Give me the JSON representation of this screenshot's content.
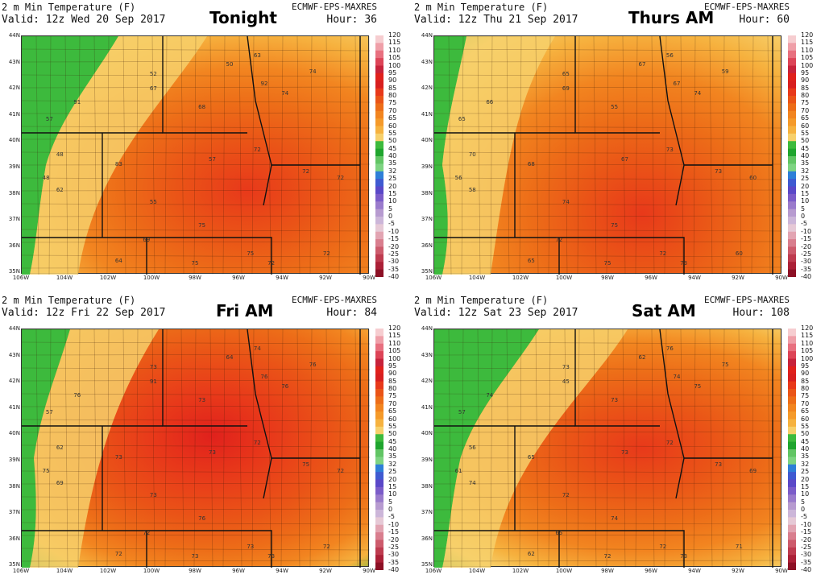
{
  "panels": [
    {
      "title": "2 m Min Temperature (F)",
      "valid": "Valid: 12z Wed 20 Sep 2017",
      "source": "ECMWF-EPS-MAXRES",
      "hour": "Hour: 36",
      "label": "Tonight",
      "stations": [
        "63",
        "50",
        "91",
        "52",
        "67",
        "68",
        "74",
        "92",
        "57",
        "48",
        "48",
        "62",
        "83",
        "57",
        "74",
        "72",
        "55",
        "72",
        "75",
        "69",
        "64",
        "75",
        "72",
        "75",
        "72",
        "72"
      ]
    },
    {
      "title": "2 m Min Temperature (F)",
      "valid": "Valid: 12z Thu 21 Sep 2017",
      "source": "ECMWF-EPS-MAXRES",
      "hour": "Hour: 60",
      "label": "Thurs AM",
      "stations": [
        "56",
        "67",
        "66",
        "65",
        "69",
        "55",
        "59",
        "67",
        "65",
        "70",
        "56",
        "58",
        "68",
        "67",
        "74",
        "73",
        "74",
        "73",
        "75",
        "72",
        "65",
        "75",
        "73",
        "72",
        "60",
        "60"
      ]
    },
    {
      "title": "2 m Min Temperature (F)",
      "valid": "Valid: 12z Fri 22 Sep 2017",
      "source": "ECMWF-EPS-MAXRES",
      "hour": "Hour: 84",
      "label": "Fri AM",
      "stations": [
        "74",
        "64",
        "76",
        "73",
        "91",
        "73",
        "76",
        "76",
        "57",
        "62",
        "75",
        "69",
        "73",
        "73",
        "76",
        "75",
        "73",
        "72",
        "76",
        "72",
        "72",
        "73",
        "73",
        "73",
        "72",
        "72"
      ]
    },
    {
      "title": "2 m Min Temperature (F)",
      "valid": "Valid: 12z Sat 23 Sep 2017",
      "source": "ECMWF-EPS-MAXRES",
      "hour": "Hour: 108",
      "label": "Sat AM",
      "stations": [
        "76",
        "62",
        "74",
        "73",
        "45",
        "73",
        "75",
        "74",
        "57",
        "56",
        "61",
        "74",
        "65",
        "73",
        "75",
        "73",
        "72",
        "72",
        "74",
        "65",
        "62",
        "72",
        "73",
        "72",
        "71",
        "69"
      ]
    }
  ],
  "lat_labels": [
    "44N",
    "43N",
    "42N",
    "41N",
    "40N",
    "39N",
    "38N",
    "37N",
    "36N",
    "35N"
  ],
  "lon_labels": [
    "106W",
    "104W",
    "102W",
    "100W",
    "98W",
    "96W",
    "94W",
    "92W",
    "90W"
  ],
  "colorbar_labels": [
    "120",
    "115",
    "110",
    "105",
    "100",
    "95",
    "90",
    "85",
    "80",
    "75",
    "70",
    "65",
    "60",
    "55",
    "50",
    "45",
    "40",
    "35",
    "32",
    "25",
    "20",
    "15",
    "10",
    "5",
    "0",
    "-5",
    "-10",
    "-15",
    "-20",
    "-25",
    "-30",
    "-35",
    "-40"
  ],
  "colorbar_colors": [
    "#f6cdd0",
    "#ef9fa8",
    "#e8707f",
    "#dd4457",
    "#c7233b",
    "#e0211c",
    "#d81f1f",
    "#e8391a",
    "#ea5417",
    "#ed6d18",
    "#f28520",
    "#f59a2a",
    "#f6b23f",
    "#f7d06b",
    "#3dba3d",
    "#1fa52e",
    "#61c564",
    "#7ed482",
    "#2e7fd8",
    "#3f5ad1",
    "#5a48c8",
    "#7b5cc9",
    "#9a7bcc",
    "#b79bd0",
    "#ccb6d9",
    "#e6c9d6",
    "#e2a4b2",
    "#d97e8e",
    "#cd5b6c",
    "#be3b4f",
    "#ab2037",
    "#8c1025"
  ]
}
